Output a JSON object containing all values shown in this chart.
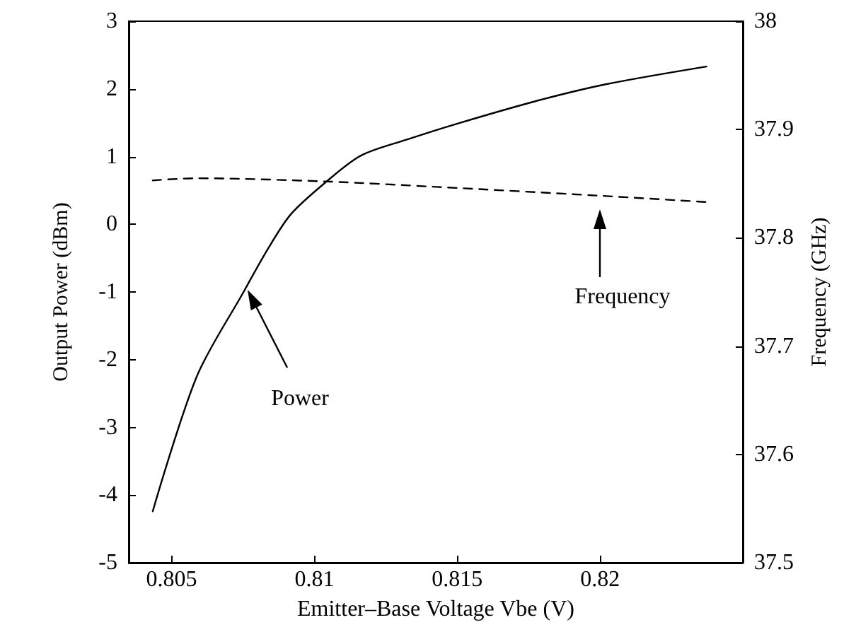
{
  "chart_data": {
    "type": "line",
    "xlabel": "Emitter–Base Voltage Vbe (V)",
    "ylabel": "Output Power (dBm)",
    "y2label": "Frequency (GHz)",
    "xlim": [
      0.8035,
      0.825
    ],
    "xticks": [
      0.805,
      0.81,
      0.815,
      0.82
    ],
    "ylim": [
      -5,
      3
    ],
    "yticks": [
      -5,
      -4,
      -3,
      -2,
      -1,
      0,
      1,
      2,
      3
    ],
    "y2lim": [
      37.5,
      38
    ],
    "y2ticks": [
      37.5,
      37.6,
      37.7,
      37.8,
      37.9,
      38
    ],
    "grid": false,
    "marker": "none",
    "series": [
      {
        "color": "#000000",
        "line_style": "solid",
        "axis": "y",
        "x": [
          0.80434,
          0.80588,
          0.80752,
          0.80835,
          0.80918,
          0.81042,
          0.81165,
          0.8133,
          0.81503,
          0.81776,
          0.82023,
          0.82373
        ],
        "values": [
          -4.24,
          -2.25,
          -1.0,
          -0.38,
          0.15,
          0.63,
          1.02,
          1.26,
          1.49,
          1.82,
          2.07,
          2.33
        ]
      },
      {
        "color": "#000000",
        "line_style": "dashed",
        "axis": "y2",
        "x": [
          0.80434,
          0.80588,
          0.81042,
          0.81428,
          0.8199,
          0.82373
        ],
        "values": [
          37.853,
          37.855,
          37.852,
          37.847,
          37.839,
          37.833
        ]
      }
    ],
    "annotations": [
      "Power",
      "Frequency"
    ]
  }
}
